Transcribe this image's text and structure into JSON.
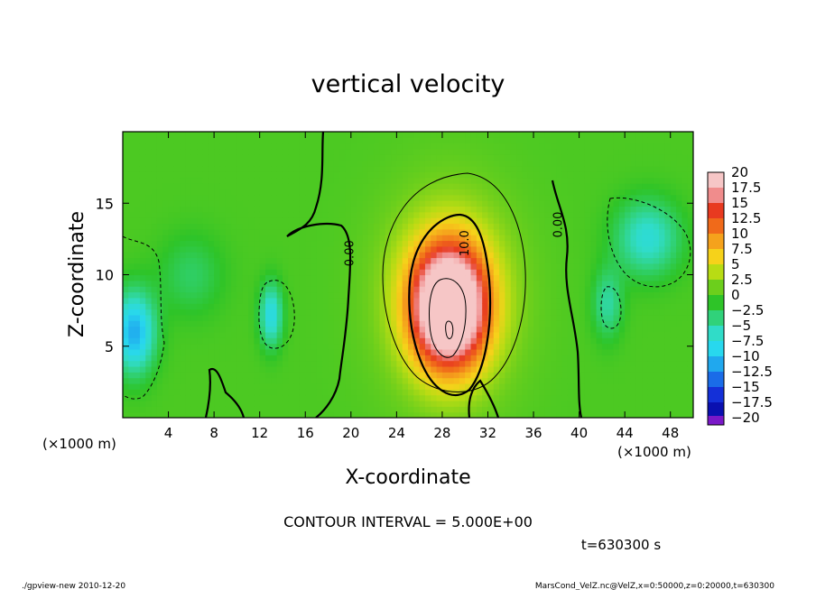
{
  "chart_data": {
    "type": "heatmap",
    "title": "vertical velocity",
    "xlabel": "X-coordinate",
    "ylabel": "Z-coordinate",
    "x_unit_left": "(×1000 m)",
    "x_unit_right": "(×1000 m)",
    "xlim": [
      0,
      50
    ],
    "ylim": [
      0,
      20
    ],
    "x_ticks": [
      4,
      8,
      12,
      16,
      20,
      24,
      28,
      32,
      36,
      40,
      44,
      48
    ],
    "y_ticks": [
      5,
      10,
      15
    ],
    "contour_labels": [
      {
        "text": "0.00",
        "x": 20.2,
        "y": 11.5
      },
      {
        "text": "10.0",
        "x": 30.3,
        "y": 12.2
      },
      {
        "text": "0.00",
        "x": 38.5,
        "y": 13.5
      }
    ],
    "colorbar": {
      "labels": [
        "20",
        "17.5",
        "15",
        "12.5",
        "10",
        "7.5",
        "5",
        "2.5",
        "0",
        "−2.5",
        "−5",
        "−7.5",
        "−10",
        "−12.5",
        "−15",
        "−17.5",
        "−20"
      ],
      "colors": [
        "#f6c6c6",
        "#f08c8c",
        "#e83a20",
        "#f06a1a",
        "#f5a21c",
        "#f6d21a",
        "#b8dc14",
        "#6ccf1c",
        "#2ec428",
        "#30d27a",
        "#30dcc8",
        "#28d8ee",
        "#20a8ee",
        "#1a6ce8",
        "#1430d8",
        "#0a10b0",
        "#7a18c8"
      ]
    },
    "colormap": [
      [
        -20,
        "#7a18c8"
      ],
      [
        -17.5,
        "#0a10b0"
      ],
      [
        -15,
        "#1430d8"
      ],
      [
        -12.5,
        "#1a6ce8"
      ],
      [
        -10,
        "#20a8ee"
      ],
      [
        -7.5,
        "#28d8ee"
      ],
      [
        -5,
        "#30dcc8"
      ],
      [
        -2.5,
        "#30d27a"
      ],
      [
        0,
        "#2ec428"
      ],
      [
        2.5,
        "#6ccf1c"
      ],
      [
        5,
        "#b8dc14"
      ],
      [
        7.5,
        "#f6d21a"
      ],
      [
        10,
        "#f5a21c"
      ],
      [
        12.5,
        "#f06a1a"
      ],
      [
        15,
        "#e83a20"
      ],
      [
        17.5,
        "#f08c8c"
      ],
      [
        20,
        "#f6c6c6"
      ]
    ],
    "field_features": [
      {
        "x": 28.6,
        "z": 7.8,
        "sx": 3.1,
        "sz": 4.0,
        "amp": 26
      },
      {
        "x": 28.6,
        "z": 8.5,
        "sx": 5.6,
        "sz": 6.8,
        "amp": 6
      },
      {
        "x": 1.0,
        "z": 6.0,
        "sx": 1.8,
        "sz": 2.8,
        "amp": -11
      },
      {
        "x": 13.0,
        "z": 7.2,
        "sx": 1.0,
        "sz": 2.2,
        "amp": -8
      },
      {
        "x": 46.0,
        "z": 12.6,
        "sx": 2.8,
        "sz": 2.6,
        "amp": -7
      },
      {
        "x": 42.5,
        "z": 8.0,
        "sx": 1.3,
        "sz": 2.4,
        "amp": -5
      },
      {
        "x": 6.0,
        "z": 10.0,
        "sx": 2.8,
        "sz": 2.8,
        "amp": -3
      }
    ],
    "grid": false,
    "contour_interval_text": "CONTOUR INTERVAL = 5.000E+00",
    "time_text": "t=630300 s"
  },
  "footer": {
    "left": "./gpview-new  2010-12-20",
    "right": "MarsCond_VelZ.nc@VelZ,x=0:50000,z=0:20000,t=630300"
  }
}
